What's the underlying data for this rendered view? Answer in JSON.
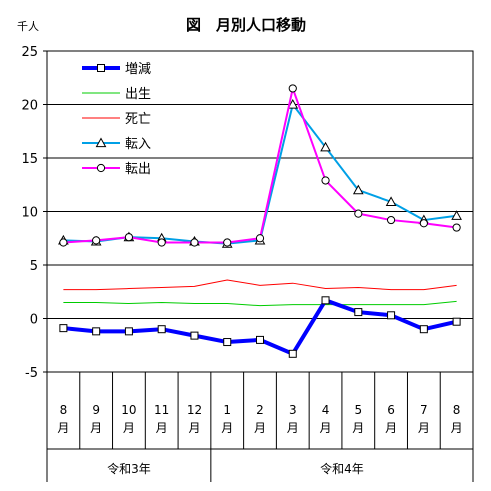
{
  "chart_data": {
    "type": "line",
    "title": "図　月別人口移動",
    "unit_label": "千人",
    "ylim": [
      -5,
      25
    ],
    "yticks": [
      -5,
      0,
      5,
      10,
      15,
      20,
      25
    ],
    "grid": true,
    "legend_position": "top-left",
    "categories": [
      {
        "month": "8",
        "suffix": "月"
      },
      {
        "month": "9",
        "suffix": "月"
      },
      {
        "month": "10",
        "suffix": "月"
      },
      {
        "month": "11",
        "suffix": "月"
      },
      {
        "month": "12",
        "suffix": "月"
      },
      {
        "month": "1",
        "suffix": "月"
      },
      {
        "month": "2",
        "suffix": "月"
      },
      {
        "month": "3",
        "suffix": "月"
      },
      {
        "month": "4",
        "suffix": "月"
      },
      {
        "month": "5",
        "suffix": "月"
      },
      {
        "month": "6",
        "suffix": "月"
      },
      {
        "month": "7",
        "suffix": "月"
      },
      {
        "month": "8",
        "suffix": "月"
      }
    ],
    "eras": [
      {
        "label": "令和3年",
        "start": 0,
        "end": 4
      },
      {
        "label": "令和4年",
        "start": 5,
        "end": 12
      }
    ],
    "series": [
      {
        "name": "増減",
        "color": "#0000ff",
        "marker": "square",
        "values": [
          -0.9,
          -1.2,
          -1.2,
          -1.0,
          -1.6,
          -2.2,
          -2.0,
          -3.3,
          1.7,
          0.6,
          0.3,
          -1.0,
          -0.3
        ]
      },
      {
        "name": "出生",
        "color": "#00cc00",
        "marker": "none",
        "values": [
          1.5,
          1.5,
          1.4,
          1.5,
          1.4,
          1.4,
          1.2,
          1.3,
          1.3,
          1.3,
          1.3,
          1.3,
          1.6
        ]
      },
      {
        "name": "死亡",
        "color": "#ff0000",
        "marker": "none",
        "values": [
          2.7,
          2.7,
          2.8,
          2.9,
          3.0,
          3.6,
          3.1,
          3.3,
          2.8,
          2.9,
          2.7,
          2.7,
          3.1
        ]
      },
      {
        "name": "転入",
        "color": "#00a0e6",
        "marker": "triangle",
        "values": [
          7.3,
          7.2,
          7.6,
          7.5,
          7.2,
          7.0,
          7.3,
          20.0,
          16.0,
          12.0,
          10.9,
          9.2,
          9.6
        ]
      },
      {
        "name": "転出",
        "color": "#ff00ff",
        "marker": "circle",
        "values": [
          7.1,
          7.3,
          7.6,
          7.1,
          7.1,
          7.1,
          7.5,
          21.5,
          12.9,
          9.8,
          9.2,
          8.9,
          8.5
        ]
      }
    ]
  }
}
